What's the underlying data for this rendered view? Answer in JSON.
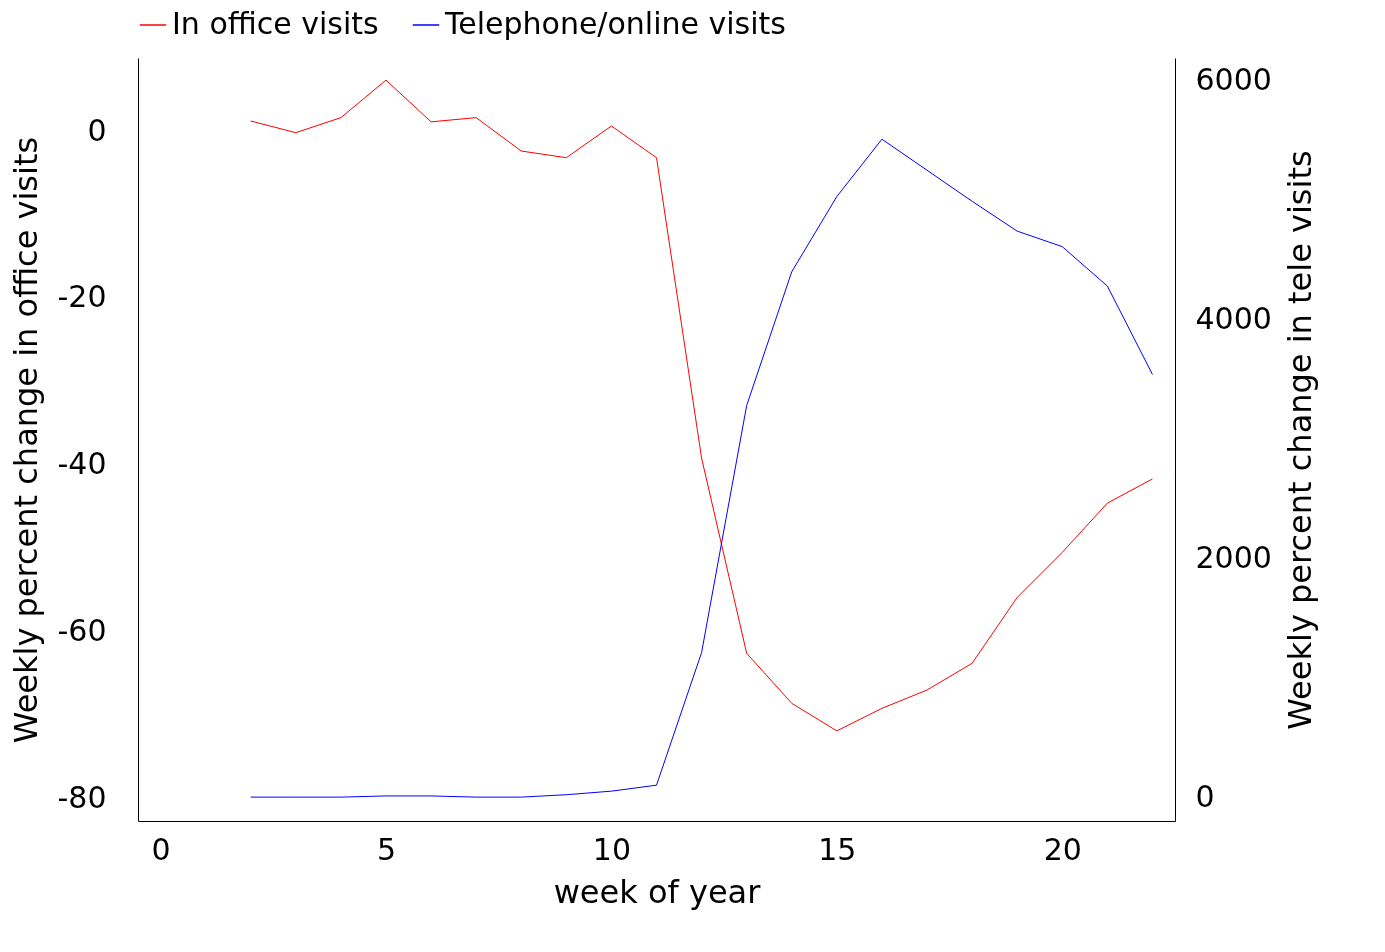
{
  "chart_data": {
    "type": "line",
    "xlabel": "week of year",
    "ylabel": "Weekly percent change in office visits",
    "y2label": "Weekly percent change in tele visits",
    "x": [
      2,
      3,
      4,
      5,
      6,
      7,
      8,
      9,
      10,
      11,
      12,
      13,
      14,
      15,
      16,
      17,
      18,
      19,
      20,
      21,
      22
    ],
    "series": [
      {
        "name": "In office visits",
        "color": "#ff0000",
        "values": [
          1.2,
          -0.2,
          1.6,
          6.1,
          1.1,
          1.6,
          -2.4,
          -3.2,
          0.6,
          -3.2,
          -39.2,
          -62.6,
          -68.6,
          -71.9,
          -69.2,
          -67.0,
          -63.8,
          -55.9,
          -50.5,
          -44.6,
          -41.7
        ]
      },
      {
        "name": "Telephone/online visits",
        "color": "#0000ff",
        "axis": "y2",
        "values": [
          0,
          0,
          0,
          10,
          10,
          0,
          0,
          20,
          50,
          100,
          1210,
          3280,
          4400,
          5030,
          5510,
          5250,
          4990,
          4740,
          4610,
          4280,
          3540
        ]
      }
    ],
    "xlim": [
      -0.5,
      22.5
    ],
    "xticks": [
      0,
      5,
      10,
      15,
      20
    ],
    "ylim": [
      -82.7,
      8.75
    ],
    "yticks": [
      -80,
      -60,
      -40,
      -20,
      0
    ],
    "y2lim": [
      -200,
      6190
    ],
    "y2ticks": [
      0,
      2000,
      4000,
      6000
    ],
    "legend": "top"
  }
}
